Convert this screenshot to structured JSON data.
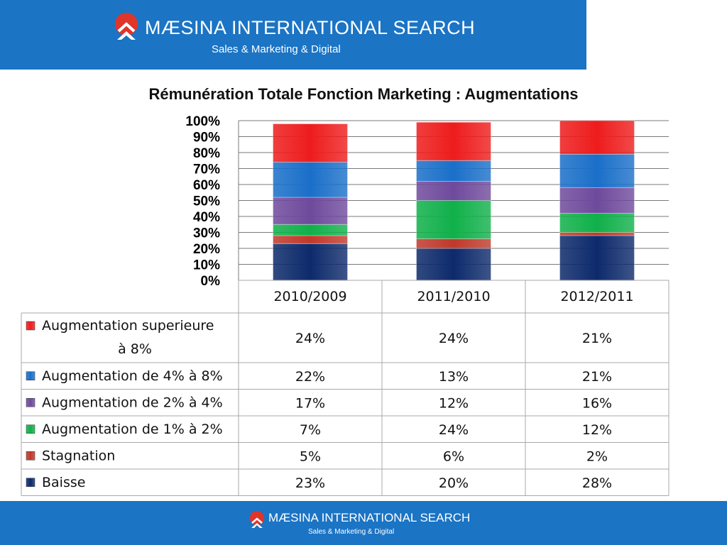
{
  "branding": {
    "header_name": "MÆSINA INTERNATIONAL SEARCH",
    "header_tagline": "Sales & Marketing & Digital",
    "footer_name": "MÆSINA INTERNATIONAL SEARCH",
    "footer_tagline": "Sales & Marketing & Digital",
    "brand_color": "#1b74c4",
    "logo_accent_color": "#e0352a"
  },
  "chart_data": {
    "type": "bar",
    "stacked": true,
    "title": "Rémunération Totale Fonction Marketing : Augmentations",
    "categories": [
      "2010/2009",
      "2011/2010",
      "2012/2011"
    ],
    "yticks": [
      "0%",
      "10%",
      "20%",
      "30%",
      "40%",
      "50%",
      "60%",
      "70%",
      "80%",
      "90%",
      "100%"
    ],
    "ylim": [
      0,
      100
    ],
    "grid": true,
    "series": [
      {
        "name": "Baisse",
        "values": [
          23,
          20,
          28
        ],
        "labels": [
          "23%",
          "20%",
          "28%"
        ],
        "color": "#0d2a6b"
      },
      {
        "name": "Stagnation",
        "values": [
          5,
          6,
          2
        ],
        "labels": [
          "5%",
          "6%",
          "2%"
        ],
        "color": "#c0392b"
      },
      {
        "name": "Augmentation de 1% à 2%",
        "values": [
          7,
          24,
          12
        ],
        "labels": [
          "7%",
          "24%",
          "12%"
        ],
        "color": "#10b04a"
      },
      {
        "name": "Augmentation de 2% à 4%",
        "values": [
          17,
          12,
          16
        ],
        "labels": [
          "17%",
          "12%",
          "16%"
        ],
        "color": "#6f4a9c"
      },
      {
        "name": "Augmentation de 4% à 8%",
        "values": [
          22,
          13,
          21
        ],
        "labels": [
          "22%",
          "13%",
          "21%"
        ],
        "color": "#1a6fc9"
      },
      {
        "name": "Augmentation superieure à 8%",
        "values": [
          24,
          24,
          21
        ],
        "labels": [
          "24%",
          "24%",
          "21%"
        ],
        "color": "#ee1c1c"
      }
    ]
  }
}
